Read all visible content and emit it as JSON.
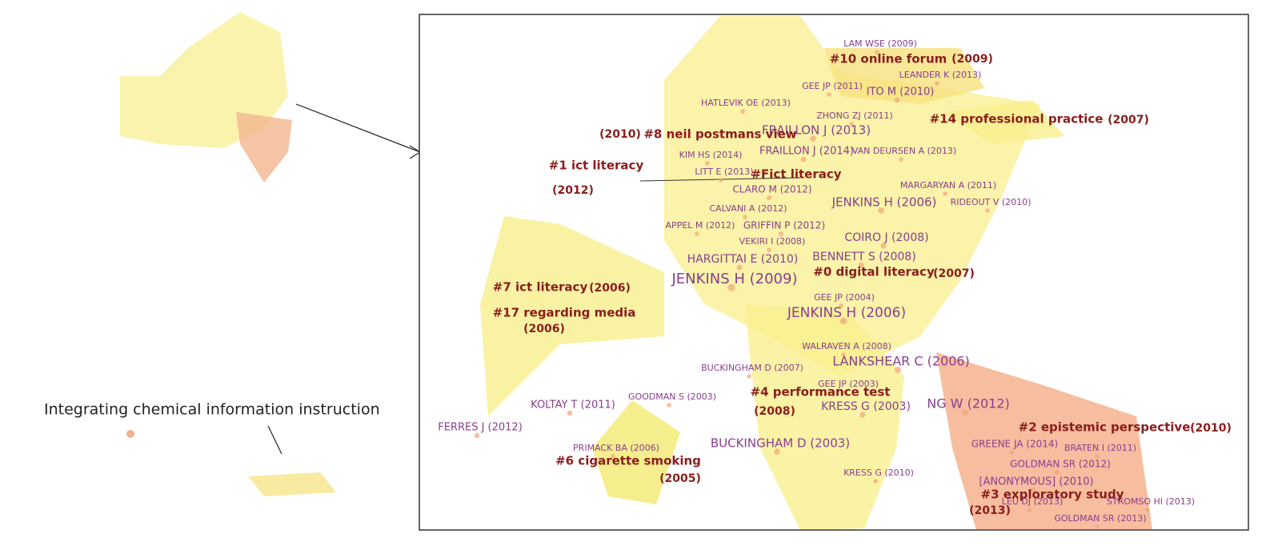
{
  "annotation": "Integrating chemical information instruction",
  "clusters": [
    {
      "label": "#10 online forum",
      "year": "(2009)"
    },
    {
      "label": "#14 professional practice",
      "year": "(2007)"
    },
    {
      "label": "#8 neil postmans view",
      "year": "(2010)"
    },
    {
      "label": "#1 ict literacy",
      "year": "(2012)"
    },
    {
      "label": "#Fict literacy"
    },
    {
      "label": "#0 digital literacy",
      "year": "(2007)"
    },
    {
      "label": "#7 ict literacy",
      "year": "(2006)"
    },
    {
      "label": "#17 regarding media",
      "year": "(2006)"
    },
    {
      "label": "#4 performance test",
      "year": "(2008)"
    },
    {
      "label": "#2 epistemic perspective",
      "year": "(2010)"
    },
    {
      "label": "#6 cigarette smoking",
      "year": "(2005)"
    },
    {
      "label": "#3 exploratory study",
      "year": "(2013)"
    }
  ],
  "nodes": [
    {
      "label": "LAM WSE (2009)"
    },
    {
      "label": "LEANDER K (2013)"
    },
    {
      "label": "GEE JP (2011)"
    },
    {
      "label": "ITO M (2010)"
    },
    {
      "label": "HATLEVIK OE (2013)"
    },
    {
      "label": "ZHONG ZJ (2011)"
    },
    {
      "label": "FRAILLON J (2013)"
    },
    {
      "label": "KIM HS (2014)"
    },
    {
      "label": "FRAILLON J (2014)"
    },
    {
      "label": "VAN DEURSEN A (2013)"
    },
    {
      "label": "LITT E (2013)"
    },
    {
      "label": "MARGARYAN A (2011)"
    },
    {
      "label": "CLARO M (2012)"
    },
    {
      "label": "JENKINS H (2006)"
    },
    {
      "label": "RIDEOUT V (2010)"
    },
    {
      "label": "CALVANI A (2012)"
    },
    {
      "label": "APPEL M (2012)"
    },
    {
      "label": "GRIFFIN P (2012)"
    },
    {
      "label": "COIRO J (2008)"
    },
    {
      "label": "VEKIRI I (2008)"
    },
    {
      "label": "HARGITTAI E (2010)"
    },
    {
      "label": "BENNETT S (2008)"
    },
    {
      "label": "JENKINS H (2009)"
    },
    {
      "label": "GEE JP (2004)"
    },
    {
      "label": "JENKINS H (2006)"
    },
    {
      "label": "WALRAVEN A (2008)"
    },
    {
      "label": "LANKSHEAR C (2006)"
    },
    {
      "label": "BUCKINGHAM D (2007)"
    },
    {
      "label": "GOODMAN S (2003)"
    },
    {
      "label": "GEE JP (2003)"
    },
    {
      "label": "KOLTAY T (2011)"
    },
    {
      "label": "KRESS G (2003)"
    },
    {
      "label": "NG W (2012)"
    },
    {
      "label": "FERRES J (2012)"
    },
    {
      "label": "BUCKINGHAM D (2003)"
    },
    {
      "label": "GREENE JA (2014)"
    },
    {
      "label": "BRATEN I (2011)"
    },
    {
      "label": "PRIMACK BA (2006)"
    },
    {
      "label": "GOLDMAN SR (2012)"
    },
    {
      "label": "KRESS G (2010)"
    },
    {
      "label": "[ANONYMOUS] (2010)"
    },
    {
      "label": "LEU DJ (2013)"
    },
    {
      "label": "STROMSO HI (2013)"
    },
    {
      "label": "GOLDMAN SR (2013)"
    }
  ]
}
